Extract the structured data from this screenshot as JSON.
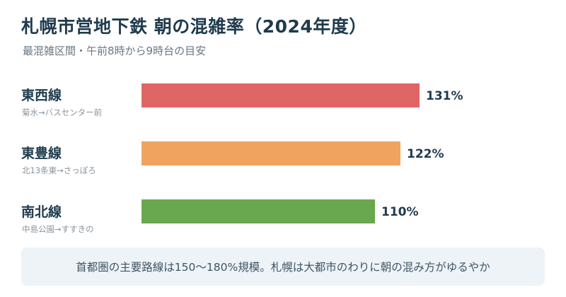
{
  "header": {
    "title": "札幌市営地下鉄 朝の混雑率（2024年度）",
    "subtitle": "最混雑区間・午前8時から9時台の目安"
  },
  "note": "首都圏の主要路線は150〜180%規模。札幌は大都市のわりに朝の混み方がゆるやか",
  "colors": {
    "tozai": "#e06666",
    "toho": "#f0a35e",
    "nanboku": "#6aa84f"
  },
  "chart_data": {
    "type": "bar",
    "orientation": "horizontal",
    "title": "札幌市営地下鉄 朝の混雑率（2024年度）",
    "subtitle": "最混雑区間・午前8時から9時台の目安",
    "categories": [
      "東西線",
      "東豊線",
      "南北線"
    ],
    "sections": [
      "菊水→バスセンター前",
      "北13条東→さっぽろ",
      "中島公園→すすきの"
    ],
    "values": [
      131,
      122,
      110
    ],
    "value_labels": [
      "131%",
      "122%",
      "110%"
    ],
    "unit": "%",
    "xlim": [
      0,
      131
    ],
    "grid": false,
    "legend": "none"
  }
}
